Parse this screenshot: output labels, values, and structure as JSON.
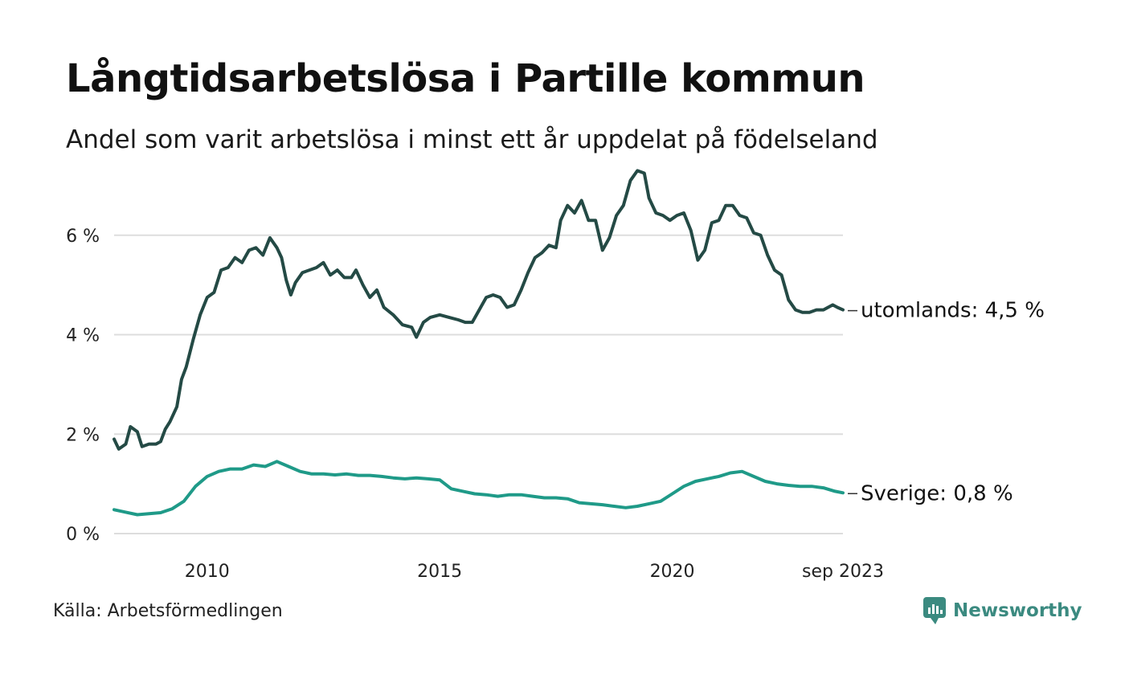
{
  "header": {
    "title": "Långtidsarbetslösa i Partille kommun",
    "subtitle": "Andel som varit arbetslösa i minst ett år uppdelat på födelseland"
  },
  "footer": {
    "source": "Källa: Arbetsförmedlingen",
    "brand": "Newsworthy"
  },
  "colors": {
    "utomlands": "#244a45",
    "sverige": "#1f9a88",
    "grid": "#dddddd",
    "brand": "#3b8a80"
  },
  "chart_data": {
    "type": "line",
    "title": "Långtidsarbetslösa i Partille kommun",
    "subtitle": "Andel som varit arbetslösa i minst ett år uppdelat på födelseland",
    "xlabel": "",
    "ylabel": "",
    "xlim": [
      2008.0,
      2023.67
    ],
    "ylim": [
      0,
      7.5
    ],
    "yticks": [
      0,
      2,
      4,
      6
    ],
    "ytick_labels": [
      "0 %",
      "2 %",
      "4 %",
      "6 %"
    ],
    "xticks": [
      2010,
      2015,
      2020,
      2023.67
    ],
    "xtick_labels": [
      "2010",
      "2015",
      "2020",
      "sep 2023"
    ],
    "grid": true,
    "series": [
      {
        "name": "utomlands",
        "end_label": "utomlands: 4,5 %",
        "points": [
          [
            2008.0,
            1.9
          ],
          [
            2008.1,
            1.7
          ],
          [
            2008.25,
            1.8
          ],
          [
            2008.35,
            2.15
          ],
          [
            2008.5,
            2.05
          ],
          [
            2008.6,
            1.75
          ],
          [
            2008.75,
            1.8
          ],
          [
            2008.9,
            1.8
          ],
          [
            2009.0,
            1.85
          ],
          [
            2009.1,
            2.1
          ],
          [
            2009.2,
            2.25
          ],
          [
            2009.35,
            2.55
          ],
          [
            2009.45,
            3.1
          ],
          [
            2009.55,
            3.35
          ],
          [
            2009.7,
            3.9
          ],
          [
            2009.85,
            4.4
          ],
          [
            2010.0,
            4.75
          ],
          [
            2010.15,
            4.85
          ],
          [
            2010.3,
            5.3
          ],
          [
            2010.45,
            5.35
          ],
          [
            2010.6,
            5.55
          ],
          [
            2010.75,
            5.45
          ],
          [
            2010.9,
            5.7
          ],
          [
            2011.05,
            5.75
          ],
          [
            2011.2,
            5.6
          ],
          [
            2011.35,
            5.95
          ],
          [
            2011.5,
            5.75
          ],
          [
            2011.6,
            5.55
          ],
          [
            2011.7,
            5.1
          ],
          [
            2011.8,
            4.8
          ],
          [
            2011.9,
            5.05
          ],
          [
            2012.05,
            5.25
          ],
          [
            2012.2,
            5.3
          ],
          [
            2012.35,
            5.35
          ],
          [
            2012.5,
            5.45
          ],
          [
            2012.65,
            5.2
          ],
          [
            2012.8,
            5.3
          ],
          [
            2012.95,
            5.15
          ],
          [
            2013.1,
            5.15
          ],
          [
            2013.2,
            5.3
          ],
          [
            2013.35,
            5.0
          ],
          [
            2013.5,
            4.75
          ],
          [
            2013.65,
            4.9
          ],
          [
            2013.8,
            4.55
          ],
          [
            2014.0,
            4.4
          ],
          [
            2014.2,
            4.2
          ],
          [
            2014.4,
            4.15
          ],
          [
            2014.5,
            3.95
          ],
          [
            2014.65,
            4.25
          ],
          [
            2014.8,
            4.35
          ],
          [
            2015.0,
            4.4
          ],
          [
            2015.2,
            4.35
          ],
          [
            2015.4,
            4.3
          ],
          [
            2015.55,
            4.25
          ],
          [
            2015.7,
            4.25
          ],
          [
            2015.85,
            4.5
          ],
          [
            2016.0,
            4.75
          ],
          [
            2016.15,
            4.8
          ],
          [
            2016.3,
            4.75
          ],
          [
            2016.45,
            4.55
          ],
          [
            2016.6,
            4.6
          ],
          [
            2016.75,
            4.9
          ],
          [
            2016.9,
            5.25
          ],
          [
            2017.05,
            5.55
          ],
          [
            2017.2,
            5.65
          ],
          [
            2017.35,
            5.8
          ],
          [
            2017.5,
            5.75
          ],
          [
            2017.6,
            6.3
          ],
          [
            2017.75,
            6.6
          ],
          [
            2017.9,
            6.45
          ],
          [
            2018.05,
            6.7
          ],
          [
            2018.2,
            6.3
          ],
          [
            2018.35,
            6.3
          ],
          [
            2018.5,
            5.7
          ],
          [
            2018.65,
            5.95
          ],
          [
            2018.8,
            6.4
          ],
          [
            2018.95,
            6.6
          ],
          [
            2019.1,
            7.1
          ],
          [
            2019.25,
            7.3
          ],
          [
            2019.4,
            7.25
          ],
          [
            2019.5,
            6.75
          ],
          [
            2019.65,
            6.45
          ],
          [
            2019.8,
            6.4
          ],
          [
            2019.95,
            6.3
          ],
          [
            2020.1,
            6.4
          ],
          [
            2020.25,
            6.45
          ],
          [
            2020.4,
            6.1
          ],
          [
            2020.55,
            5.5
          ],
          [
            2020.7,
            5.7
          ],
          [
            2020.85,
            6.25
          ],
          [
            2021.0,
            6.3
          ],
          [
            2021.15,
            6.6
          ],
          [
            2021.3,
            6.6
          ],
          [
            2021.45,
            6.4
          ],
          [
            2021.6,
            6.35
          ],
          [
            2021.75,
            6.05
          ],
          [
            2021.9,
            6.0
          ],
          [
            2022.05,
            5.6
          ],
          [
            2022.2,
            5.3
          ],
          [
            2022.35,
            5.2
          ],
          [
            2022.5,
            4.7
          ],
          [
            2022.65,
            4.5
          ],
          [
            2022.8,
            4.45
          ],
          [
            2022.95,
            4.45
          ],
          [
            2023.1,
            4.5
          ],
          [
            2023.25,
            4.5
          ],
          [
            2023.45,
            4.6
          ],
          [
            2023.55,
            4.55
          ],
          [
            2023.67,
            4.5
          ]
        ]
      },
      {
        "name": "Sverige",
        "end_label": "Sverige: 0,8 %",
        "points": [
          [
            2008.0,
            0.48
          ],
          [
            2008.25,
            0.43
          ],
          [
            2008.5,
            0.38
          ],
          [
            2008.75,
            0.4
          ],
          [
            2009.0,
            0.42
          ],
          [
            2009.25,
            0.5
          ],
          [
            2009.5,
            0.65
          ],
          [
            2009.75,
            0.95
          ],
          [
            2010.0,
            1.15
          ],
          [
            2010.25,
            1.25
          ],
          [
            2010.5,
            1.3
          ],
          [
            2010.75,
            1.3
          ],
          [
            2011.0,
            1.38
          ],
          [
            2011.25,
            1.35
          ],
          [
            2011.5,
            1.45
          ],
          [
            2011.75,
            1.35
          ],
          [
            2012.0,
            1.25
          ],
          [
            2012.25,
            1.2
          ],
          [
            2012.5,
            1.2
          ],
          [
            2012.75,
            1.18
          ],
          [
            2013.0,
            1.2
          ],
          [
            2013.25,
            1.17
          ],
          [
            2013.5,
            1.17
          ],
          [
            2013.75,
            1.15
          ],
          [
            2014.0,
            1.12
          ],
          [
            2014.25,
            1.1
          ],
          [
            2014.5,
            1.12
          ],
          [
            2014.75,
            1.1
          ],
          [
            2015.0,
            1.08
          ],
          [
            2015.25,
            0.9
          ],
          [
            2015.5,
            0.85
          ],
          [
            2015.75,
            0.8
          ],
          [
            2016.0,
            0.78
          ],
          [
            2016.25,
            0.75
          ],
          [
            2016.5,
            0.78
          ],
          [
            2016.75,
            0.78
          ],
          [
            2017.0,
            0.75
          ],
          [
            2017.25,
            0.72
          ],
          [
            2017.5,
            0.72
          ],
          [
            2017.75,
            0.7
          ],
          [
            2018.0,
            0.62
          ],
          [
            2018.25,
            0.6
          ],
          [
            2018.5,
            0.58
          ],
          [
            2018.75,
            0.55
          ],
          [
            2019.0,
            0.52
          ],
          [
            2019.25,
            0.55
          ],
          [
            2019.5,
            0.6
          ],
          [
            2019.75,
            0.65
          ],
          [
            2020.0,
            0.8
          ],
          [
            2020.25,
            0.95
          ],
          [
            2020.5,
            1.05
          ],
          [
            2020.75,
            1.1
          ],
          [
            2021.0,
            1.15
          ],
          [
            2021.25,
            1.22
          ],
          [
            2021.5,
            1.25
          ],
          [
            2021.75,
            1.15
          ],
          [
            2022.0,
            1.05
          ],
          [
            2022.25,
            1.0
          ],
          [
            2022.5,
            0.97
          ],
          [
            2022.75,
            0.95
          ],
          [
            2023.0,
            0.95
          ],
          [
            2023.25,
            0.92
          ],
          [
            2023.5,
            0.85
          ],
          [
            2023.67,
            0.82
          ]
        ]
      }
    ]
  }
}
